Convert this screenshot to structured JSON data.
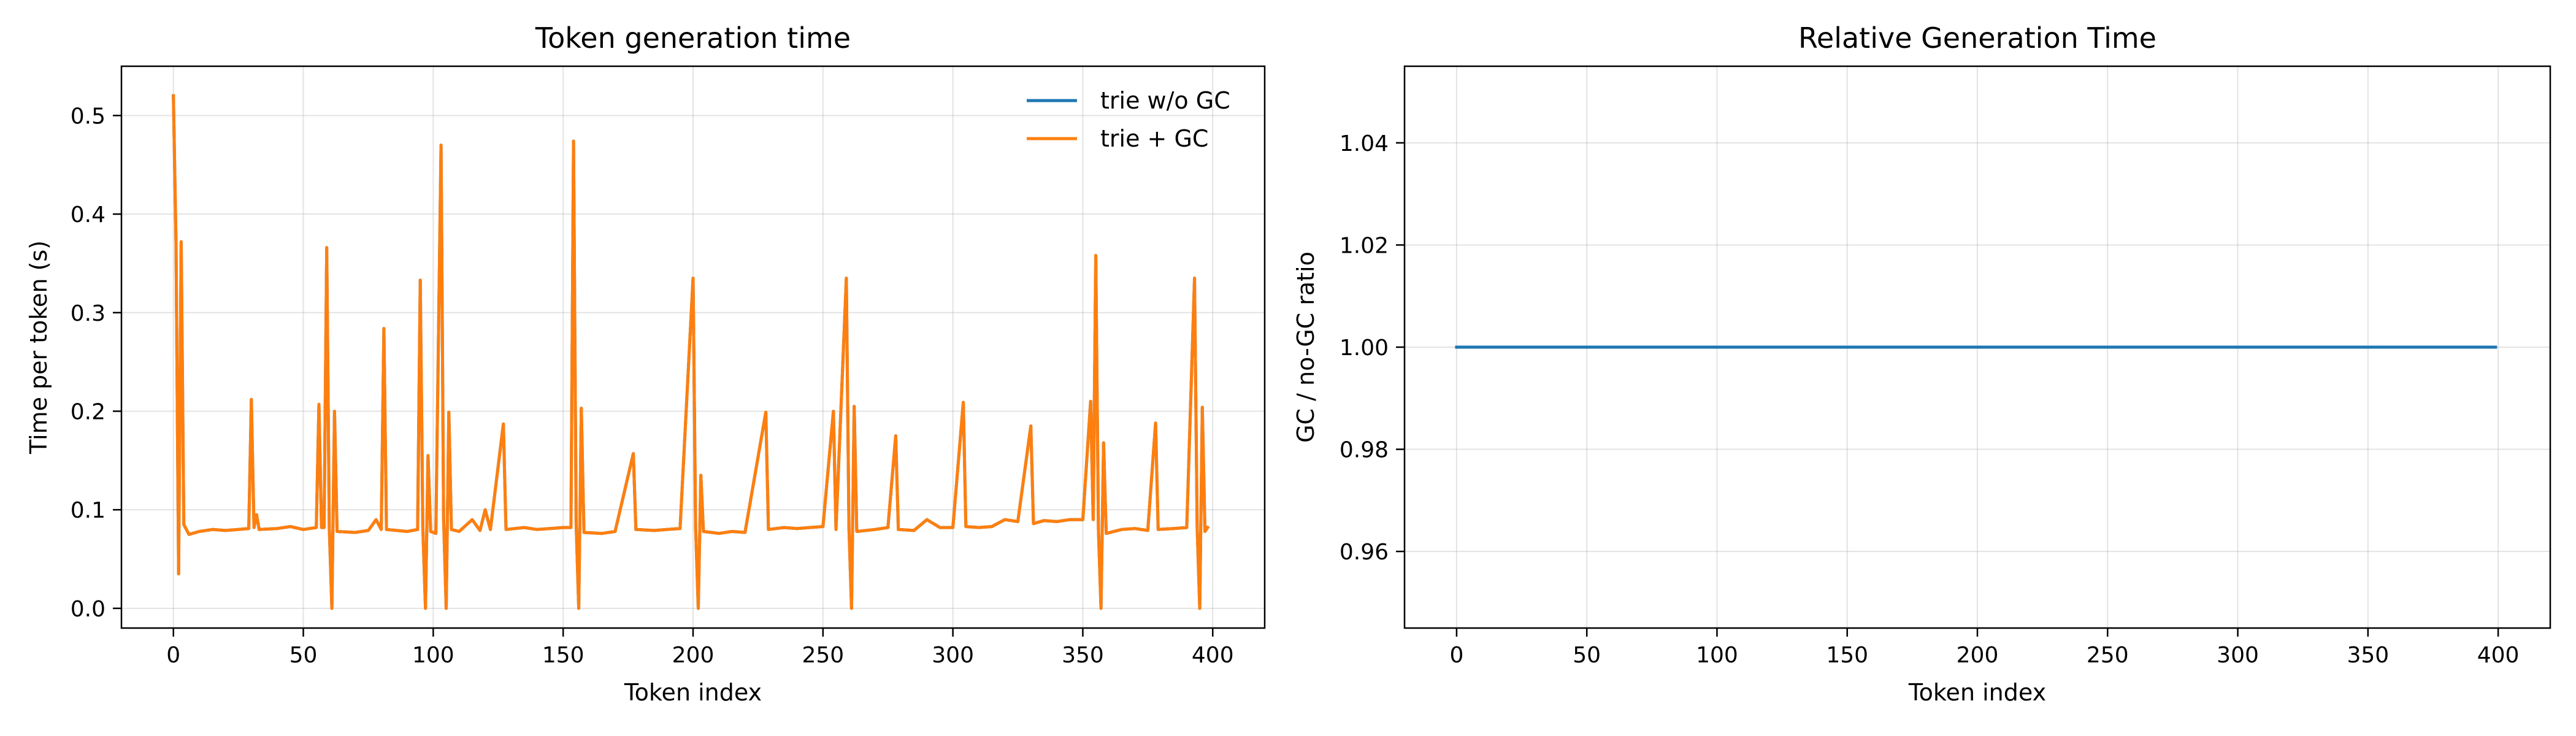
{
  "chart_data": [
    {
      "type": "line",
      "title": "Token generation time",
      "xlabel": "Token index",
      "ylabel": "Time per token (s)",
      "xlim": [
        -20,
        420
      ],
      "ylim": [
        -0.02,
        0.55
      ],
      "xticks": [
        0,
        50,
        100,
        150,
        200,
        250,
        300,
        350,
        400
      ],
      "yticks": [
        0.0,
        0.1,
        0.2,
        0.3,
        0.4,
        0.5
      ],
      "ytick_format": "1",
      "grid": true,
      "legend_position": "top-right",
      "series": [
        {
          "name": "trie w/o GC",
          "color": "#1f77b4",
          "points": [
            [
              0,
              0.52
            ],
            [
              1,
              0.37
            ],
            [
              2,
              0.035
            ],
            [
              3,
              0.372
            ],
            [
              4,
              0.085
            ],
            [
              6,
              0.075
            ],
            [
              10,
              0.078
            ],
            [
              15,
              0.08
            ],
            [
              20,
              0.079
            ],
            [
              25,
              0.08
            ],
            [
              29,
              0.081
            ],
            [
              30,
              0.212
            ],
            [
              31,
              0.082
            ],
            [
              32,
              0.095
            ],
            [
              33,
              0.08
            ],
            [
              40,
              0.081
            ],
            [
              45,
              0.083
            ],
            [
              50,
              0.08
            ],
            [
              55,
              0.082
            ],
            [
              56,
              0.207
            ],
            [
              57,
              0.082
            ],
            [
              58,
              0.082
            ],
            [
              59,
              0.366
            ],
            [
              60,
              0.082
            ],
            [
              61,
              0.0
            ],
            [
              62,
              0.2
            ],
            [
              63,
              0.078
            ],
            [
              70,
              0.077
            ],
            [
              75,
              0.079
            ],
            [
              78,
              0.09
            ],
            [
              80,
              0.08
            ],
            [
              81,
              0.284
            ],
            [
              82,
              0.08
            ],
            [
              90,
              0.078
            ],
            [
              94,
              0.08
            ],
            [
              95,
              0.333
            ],
            [
              96,
              0.082
            ],
            [
              97,
              0.0
            ],
            [
              98,
              0.155
            ],
            [
              99,
              0.078
            ],
            [
              101,
              0.076
            ],
            [
              103,
              0.47
            ],
            [
              104,
              0.09
            ],
            [
              105,
              0.0
            ],
            [
              106,
              0.199
            ],
            [
              107,
              0.08
            ],
            [
              110,
              0.078
            ],
            [
              115,
              0.09
            ],
            [
              118,
              0.079
            ],
            [
              120,
              0.1
            ],
            [
              122,
              0.08
            ],
            [
              127,
              0.187
            ],
            [
              128,
              0.08
            ],
            [
              135,
              0.082
            ],
            [
              140,
              0.08
            ],
            [
              145,
              0.081
            ],
            [
              150,
              0.082
            ],
            [
              153,
              0.082
            ],
            [
              154,
              0.474
            ],
            [
              155,
              0.085
            ],
            [
              156,
              0.0
            ],
            [
              157,
              0.203
            ],
            [
              158,
              0.077
            ],
            [
              165,
              0.076
            ],
            [
              170,
              0.078
            ],
            [
              177,
              0.157
            ],
            [
              178,
              0.08
            ],
            [
              185,
              0.079
            ],
            [
              190,
              0.08
            ],
            [
              195,
              0.081
            ],
            [
              200,
              0.335
            ],
            [
              201,
              0.081
            ],
            [
              202,
              0.0
            ],
            [
              203,
              0.135
            ],
            [
              204,
              0.078
            ],
            [
              210,
              0.076
            ],
            [
              215,
              0.078
            ],
            [
              220,
              0.077
            ],
            [
              228,
              0.199
            ],
            [
              229,
              0.08
            ],
            [
              235,
              0.082
            ],
            [
              240,
              0.081
            ],
            [
              245,
              0.082
            ],
            [
              250,
              0.083
            ],
            [
              254,
              0.2
            ],
            [
              255,
              0.08
            ],
            [
              259,
              0.335
            ],
            [
              260,
              0.081
            ],
            [
              261,
              0.0
            ],
            [
              262,
              0.205
            ],
            [
              263,
              0.078
            ],
            [
              270,
              0.08
            ],
            [
              275,
              0.082
            ],
            [
              278,
              0.175
            ],
            [
              279,
              0.08
            ],
            [
              285,
              0.079
            ],
            [
              290,
              0.09
            ],
            [
              295,
              0.082
            ],
            [
              300,
              0.082
            ],
            [
              304,
              0.209
            ],
            [
              305,
              0.083
            ],
            [
              310,
              0.082
            ],
            [
              315,
              0.083
            ],
            [
              320,
              0.09
            ],
            [
              325,
              0.088
            ],
            [
              330,
              0.185
            ],
            [
              331,
              0.086
            ],
            [
              335,
              0.089
            ],
            [
              340,
              0.088
            ],
            [
              345,
              0.09
            ],
            [
              350,
              0.09
            ],
            [
              353,
              0.21
            ],
            [
              354,
              0.09
            ],
            [
              355,
              0.358
            ],
            [
              356,
              0.08
            ],
            [
              357,
              0.0
            ],
            [
              358,
              0.168
            ],
            [
              359,
              0.076
            ],
            [
              365,
              0.08
            ],
            [
              370,
              0.081
            ],
            [
              375,
              0.079
            ],
            [
              378,
              0.188
            ],
            [
              379,
              0.08
            ],
            [
              385,
              0.081
            ],
            [
              390,
              0.082
            ],
            [
              393,
              0.335
            ],
            [
              394,
              0.082
            ],
            [
              395,
              0.0
            ],
            [
              396,
              0.204
            ],
            [
              397,
              0.078
            ],
            [
              398,
              0.082
            ]
          ]
        },
        {
          "name": "trie + GC",
          "color": "#ff7f0e",
          "points": [
            [
              0,
              0.52
            ],
            [
              1,
              0.37
            ],
            [
              2,
              0.035
            ],
            [
              3,
              0.372
            ],
            [
              4,
              0.085
            ],
            [
              6,
              0.075
            ],
            [
              10,
              0.078
            ],
            [
              15,
              0.08
            ],
            [
              20,
              0.079
            ],
            [
              25,
              0.08
            ],
            [
              29,
              0.081
            ],
            [
              30,
              0.212
            ],
            [
              31,
              0.082
            ],
            [
              32,
              0.095
            ],
            [
              33,
              0.08
            ],
            [
              40,
              0.081
            ],
            [
              45,
              0.083
            ],
            [
              50,
              0.08
            ],
            [
              55,
              0.082
            ],
            [
              56,
              0.207
            ],
            [
              57,
              0.082
            ],
            [
              58,
              0.082
            ],
            [
              59,
              0.366
            ],
            [
              60,
              0.082
            ],
            [
              61,
              0.0
            ],
            [
              62,
              0.2
            ],
            [
              63,
              0.078
            ],
            [
              70,
              0.077
            ],
            [
              75,
              0.079
            ],
            [
              78,
              0.09
            ],
            [
              80,
              0.08
            ],
            [
              81,
              0.284
            ],
            [
              82,
              0.08
            ],
            [
              90,
              0.078
            ],
            [
              94,
              0.08
            ],
            [
              95,
              0.333
            ],
            [
              96,
              0.082
            ],
            [
              97,
              0.0
            ],
            [
              98,
              0.155
            ],
            [
              99,
              0.078
            ],
            [
              101,
              0.076
            ],
            [
              103,
              0.47
            ],
            [
              104,
              0.09
            ],
            [
              105,
              0.0
            ],
            [
              106,
              0.199
            ],
            [
              107,
              0.08
            ],
            [
              110,
              0.078
            ],
            [
              115,
              0.09
            ],
            [
              118,
              0.079
            ],
            [
              120,
              0.1
            ],
            [
              122,
              0.08
            ],
            [
              127,
              0.187
            ],
            [
              128,
              0.08
            ],
            [
              135,
              0.082
            ],
            [
              140,
              0.08
            ],
            [
              145,
              0.081
            ],
            [
              150,
              0.082
            ],
            [
              153,
              0.082
            ],
            [
              154,
              0.474
            ],
            [
              155,
              0.085
            ],
            [
              156,
              0.0
            ],
            [
              157,
              0.203
            ],
            [
              158,
              0.077
            ],
            [
              165,
              0.076
            ],
            [
              170,
              0.078
            ],
            [
              177,
              0.157
            ],
            [
              178,
              0.08
            ],
            [
              185,
              0.079
            ],
            [
              190,
              0.08
            ],
            [
              195,
              0.081
            ],
            [
              200,
              0.335
            ],
            [
              201,
              0.081
            ],
            [
              202,
              0.0
            ],
            [
              203,
              0.135
            ],
            [
              204,
              0.078
            ],
            [
              210,
              0.076
            ],
            [
              215,
              0.078
            ],
            [
              220,
              0.077
            ],
            [
              228,
              0.199
            ],
            [
              229,
              0.08
            ],
            [
              235,
              0.082
            ],
            [
              240,
              0.081
            ],
            [
              245,
              0.082
            ],
            [
              250,
              0.083
            ],
            [
              254,
              0.2
            ],
            [
              255,
              0.08
            ],
            [
              259,
              0.335
            ],
            [
              260,
              0.081
            ],
            [
              261,
              0.0
            ],
            [
              262,
              0.205
            ],
            [
              263,
              0.078
            ],
            [
              270,
              0.08
            ],
            [
              275,
              0.082
            ],
            [
              278,
              0.175
            ],
            [
              279,
              0.08
            ],
            [
              285,
              0.079
            ],
            [
              290,
              0.09
            ],
            [
              295,
              0.082
            ],
            [
              300,
              0.082
            ],
            [
              304,
              0.209
            ],
            [
              305,
              0.083
            ],
            [
              310,
              0.082
            ],
            [
              315,
              0.083
            ],
            [
              320,
              0.09
            ],
            [
              325,
              0.088
            ],
            [
              330,
              0.185
            ],
            [
              331,
              0.086
            ],
            [
              335,
              0.089
            ],
            [
              340,
              0.088
            ],
            [
              345,
              0.09
            ],
            [
              350,
              0.09
            ],
            [
              353,
              0.21
            ],
            [
              354,
              0.09
            ],
            [
              355,
              0.358
            ],
            [
              356,
              0.08
            ],
            [
              357,
              0.0
            ],
            [
              358,
              0.168
            ],
            [
              359,
              0.076
            ],
            [
              365,
              0.08
            ],
            [
              370,
              0.081
            ],
            [
              375,
              0.079
            ],
            [
              378,
              0.188
            ],
            [
              379,
              0.08
            ],
            [
              385,
              0.081
            ],
            [
              390,
              0.082
            ],
            [
              393,
              0.335
            ],
            [
              394,
              0.082
            ],
            [
              395,
              0.0
            ],
            [
              396,
              0.204
            ],
            [
              397,
              0.078
            ],
            [
              398,
              0.082
            ]
          ]
        }
      ]
    },
    {
      "type": "line",
      "title": "Relative Generation Time",
      "xlabel": "Token index",
      "ylabel": "GC / no-GC ratio",
      "xlim": [
        -20,
        420
      ],
      "ylim": [
        0.945,
        1.055
      ],
      "xticks": [
        0,
        50,
        100,
        150,
        200,
        250,
        300,
        350,
        400
      ],
      "yticks": [
        0.96,
        0.98,
        1.0,
        1.02,
        1.04
      ],
      "ytick_format": "2",
      "grid": true,
      "series": [
        {
          "color": "#1f77b4",
          "points": [
            [
              0,
              1.0
            ],
            [
              399,
              1.0
            ]
          ]
        }
      ]
    }
  ]
}
